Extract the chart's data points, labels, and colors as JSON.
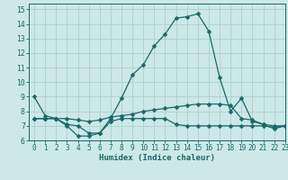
{
  "xlabel": "Humidex (Indice chaleur)",
  "bg_color": "#cce8e8",
  "grid_color": "#afd0d0",
  "line_color": "#1a6868",
  "xlim": [
    -0.5,
    23
  ],
  "ylim": [
    6,
    15.4
  ],
  "yticks": [
    6,
    7,
    8,
    9,
    10,
    11,
    12,
    13,
    14,
    15
  ],
  "xticks": [
    0,
    1,
    2,
    3,
    4,
    5,
    6,
    7,
    8,
    9,
    10,
    11,
    12,
    13,
    14,
    15,
    16,
    17,
    18,
    19,
    20,
    21,
    22,
    23
  ],
  "line1_x": [
    0,
    1,
    2,
    3,
    4,
    5,
    6,
    7,
    8,
    9,
    10,
    11,
    12,
    13,
    14,
    15,
    16,
    17,
    18,
    19,
    20,
    21,
    22,
    23
  ],
  "line1_y": [
    9.0,
    7.7,
    7.5,
    7.0,
    6.3,
    6.3,
    6.5,
    7.5,
    8.9,
    10.5,
    11.2,
    12.5,
    13.3,
    14.4,
    14.5,
    14.7,
    13.5,
    10.3,
    8.0,
    8.9,
    7.3,
    7.1,
    6.8,
    7.0
  ],
  "line2_x": [
    0,
    1,
    2,
    3,
    4,
    5,
    6,
    7,
    8,
    9,
    10,
    11,
    12,
    13,
    14,
    15,
    16,
    17,
    18,
    19,
    20,
    21,
    22,
    23
  ],
  "line2_y": [
    7.5,
    7.5,
    7.5,
    7.5,
    7.4,
    7.3,
    7.4,
    7.6,
    7.7,
    7.8,
    8.0,
    8.1,
    8.2,
    8.3,
    8.4,
    8.5,
    8.5,
    8.5,
    8.4,
    7.5,
    7.4,
    7.1,
    7.0,
    7.0
  ],
  "line3_x": [
    0,
    1,
    2,
    3,
    4,
    5,
    6,
    7,
    8,
    9,
    10,
    11,
    12,
    13,
    14,
    15,
    16,
    17,
    18,
    19,
    20,
    21,
    22,
    23
  ],
  "line3_y": [
    7.5,
    7.5,
    7.5,
    7.1,
    7.0,
    6.5,
    6.5,
    7.3,
    7.5,
    7.5,
    7.5,
    7.5,
    7.5,
    7.1,
    7.0,
    7.0,
    7.0,
    7.0,
    7.0,
    7.0,
    7.0,
    7.0,
    6.9,
    7.0
  ],
  "tick_fontsize": 5.5,
  "xlabel_fontsize": 6.5,
  "marker_size": 2.5,
  "line_width": 0.9
}
